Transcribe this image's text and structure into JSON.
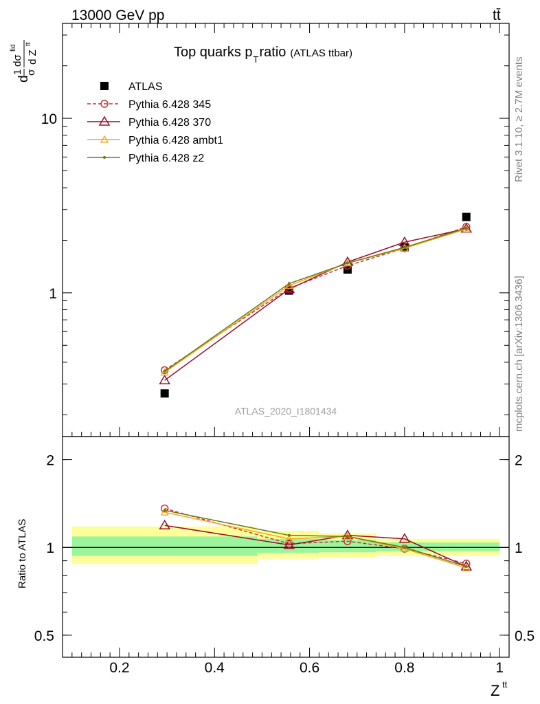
{
  "header": {
    "energy": "13000 GeV pp",
    "process": "tt̄"
  },
  "side_labels": {
    "rivet": "Rivet 3.1.10, ≥ 2.7M events",
    "source": "mcplots.cern.ch [arXiv:1306.3436]"
  },
  "chart_data": [
    {
      "type": "line",
      "panel": "main",
      "title": "Top quarks p",
      "title_sub": "T",
      "title_rest": " ratio",
      "subtitle": "(ATLAS ttbar)",
      "ylabel": "d(1/σ)dσ^fid / dZ^tt",
      "ylabel_parts": {
        "num_a": "1",
        "den_a": "σ",
        "num_b": "dσ",
        "sup_b": "fid",
        "den_b": "d Z",
        "sup_den": "tt",
        "prefix": "d"
      },
      "yscale": "log",
      "ylim": [
        0.15,
        35
      ],
      "yticks": [
        {
          "value": 1,
          "label": "1"
        },
        {
          "value": 10,
          "label": "10"
        }
      ],
      "xlim": [
        0.08,
        1.02
      ],
      "analysis_id": "ATLAS_2020_I1801434",
      "legend_position": "top-left",
      "series": [
        {
          "name": "ATLAS",
          "color": "#000000",
          "marker": "square",
          "line": "none",
          "x": [
            0.295,
            0.557,
            0.68,
            0.8,
            0.93
          ],
          "y": [
            0.265,
            1.03,
            1.36,
            1.82,
            2.72
          ]
        },
        {
          "name": "Pythia 6.428 345",
          "color": "#b9373f",
          "marker": "circle",
          "line": "dashed",
          "x": [
            0.295,
            0.557,
            0.68,
            0.8,
            0.93
          ],
          "y": [
            0.36,
            1.06,
            1.43,
            1.8,
            2.39
          ]
        },
        {
          "name": "Pythia 6.428 370",
          "color": "#9b0d2a",
          "marker": "triangle",
          "line": "solid",
          "x": [
            0.295,
            0.557,
            0.68,
            0.8,
            0.93
          ],
          "y": [
            0.315,
            1.05,
            1.5,
            1.95,
            2.33
          ]
        },
        {
          "name": "Pythia 6.428 ambt1",
          "color": "#f0a81c",
          "marker": "triangle-small",
          "line": "solid",
          "x": [
            0.295,
            0.557,
            0.68,
            0.8,
            0.93
          ],
          "y": [
            0.35,
            1.1,
            1.48,
            1.8,
            2.32
          ]
        },
        {
          "name": "Pythia 6.428 z2",
          "color": "#6d7a0f",
          "marker": "dot",
          "line": "solid",
          "x": [
            0.295,
            0.557,
            0.68,
            0.8,
            0.93
          ],
          "y": [
            0.355,
            1.13,
            1.48,
            1.82,
            2.35
          ]
        }
      ]
    },
    {
      "type": "line",
      "panel": "ratio",
      "ylabel": "Ratio to ATLAS",
      "xlabel": "Z",
      "xlabel_sup": "tt",
      "yscale": "log",
      "ylim": [
        0.42,
        2.4
      ],
      "xlim": [
        0.08,
        1.02
      ],
      "yticks": [
        {
          "value": 0.5,
          "label": "0.5"
        },
        {
          "value": 1,
          "label": "1"
        },
        {
          "value": 2,
          "label": "2"
        }
      ],
      "xticks": [
        {
          "value": 0.2,
          "label": "0.2"
        },
        {
          "value": 0.4,
          "label": "0.4"
        },
        {
          "value": 0.6,
          "label": "0.6"
        },
        {
          "value": 0.8,
          "label": "0.8"
        },
        {
          "value": 1,
          "label": "1"
        }
      ],
      "uncertainty_bands": {
        "colors": {
          "stat": "#9cf59c",
          "total": "#fdfd99"
        },
        "bins": [
          {
            "x0": 0.1,
            "x1": 0.49,
            "total": [
              0.878,
              1.18
            ],
            "stat": [
              0.935,
              1.09
            ]
          },
          {
            "x0": 0.49,
            "x1": 0.62,
            "total": [
              0.915,
              1.14
            ],
            "stat": [
              0.958,
              1.07
            ]
          },
          {
            "x0": 0.62,
            "x1": 0.74,
            "total": [
              0.926,
              1.12
            ],
            "stat": [
              0.962,
              1.06
            ]
          },
          {
            "x0": 0.74,
            "x1": 1.0,
            "total": [
              0.935,
              1.07
            ],
            "stat": [
              0.97,
              1.04
            ]
          }
        ]
      },
      "series": [
        {
          "name": "Pythia 6.428 345",
          "color": "#b9373f",
          "marker": "circle",
          "line": "dashed",
          "x": [
            0.295,
            0.557,
            0.68,
            0.8,
            0.93
          ],
          "y": [
            1.36,
            1.03,
            1.05,
            0.99,
            0.88
          ]
        },
        {
          "name": "Pythia 6.428 370",
          "color": "#9b0d2a",
          "marker": "triangle",
          "line": "solid",
          "x": [
            0.295,
            0.557,
            0.68,
            0.8,
            0.93
          ],
          "y": [
            1.19,
            1.02,
            1.1,
            1.07,
            0.86
          ]
        },
        {
          "name": "Pythia 6.428 ambt1",
          "color": "#f0a81c",
          "marker": "triangle-small",
          "line": "solid",
          "x": [
            0.295,
            0.557,
            0.68,
            0.8,
            0.93
          ],
          "y": [
            1.32,
            1.07,
            1.09,
            0.99,
            0.85
          ]
        },
        {
          "name": "Pythia 6.428 z2",
          "color": "#6d7a0f",
          "marker": "dot",
          "line": "solid",
          "x": [
            0.295,
            0.557,
            0.68,
            0.8,
            0.93
          ],
          "y": [
            1.34,
            1.1,
            1.09,
            1.0,
            0.86
          ]
        }
      ]
    }
  ]
}
